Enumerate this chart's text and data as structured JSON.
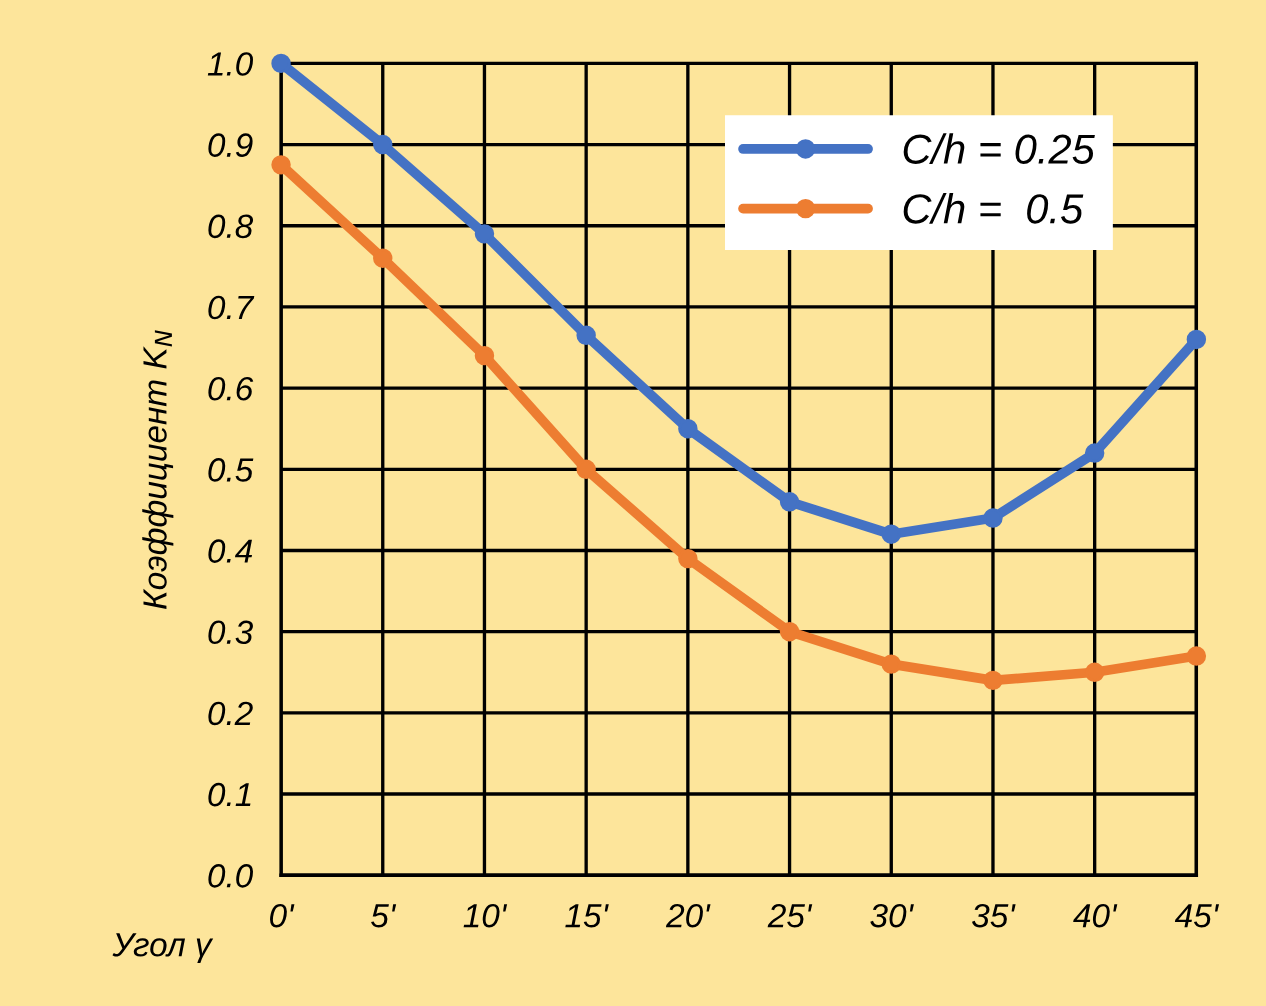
{
  "chart_data": {
    "type": "line",
    "xlabel": "Угол γ",
    "ylabel": "Коэффициент K$_{N}$",
    "categories": [
      "0'",
      "5'",
      "10'",
      "15'",
      "20'",
      "25'",
      "30'",
      "35'",
      "40'",
      "45'"
    ],
    "series": [
      {
        "name": "C/h = 0.25",
        "color": "#4472c4",
        "values": [
          1.0,
          0.9,
          0.79,
          0.665,
          0.55,
          0.46,
          0.42,
          0.44,
          0.52,
          0.66
        ]
      },
      {
        "name": "C/h =  0.5",
        "color": "#ed7d31",
        "values": [
          0.875,
          0.76,
          0.64,
          0.5,
          0.39,
          0.3,
          0.26,
          0.24,
          0.25,
          0.27
        ]
      }
    ],
    "ylim": [
      0.0,
      1.0
    ],
    "yticks": [
      {
        "value": 0,
        "label": "0.0"
      },
      0.1,
      0.2,
      0.3,
      0.4,
      0.5,
      0.6,
      0.7,
      0.8,
      0.9,
      {
        "value": 1,
        "label": "1.0"
      }
    ],
    "grid": true,
    "legend": "top right",
    "marker": "circle",
    "line_style": "solid"
  }
}
